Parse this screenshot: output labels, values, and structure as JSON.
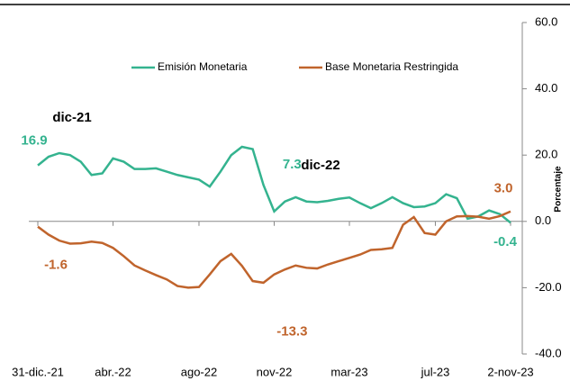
{
  "chart_data": {
    "type": "line",
    "categories": [
      "31-dic.-21",
      null,
      null,
      null,
      null,
      null,
      null,
      "abr.-22",
      null,
      null,
      null,
      null,
      null,
      null,
      null,
      "ago-22",
      null,
      null,
      null,
      null,
      null,
      null,
      "nov-22",
      null,
      null,
      null,
      null,
      null,
      null,
      "mar-23",
      null,
      null,
      null,
      null,
      null,
      null,
      null,
      "jul-23",
      null,
      null,
      null,
      null,
      null,
      null,
      "2-nov-23"
    ],
    "series": [
      {
        "name": "Emisión Monetaria",
        "color": "#34b38f",
        "values": [
          16.9,
          19.5,
          20.6,
          20,
          18,
          14,
          14.5,
          19,
          18,
          15.8,
          15.8,
          16,
          15,
          14,
          13.3,
          12.6,
          10.5,
          15,
          20,
          22.5,
          21.8,
          11,
          3,
          6,
          7.3,
          6,
          5.8,
          6.2,
          6.8,
          7.2,
          5.5,
          4,
          5.5,
          7.3,
          5.5,
          4.3,
          4.5,
          5.5,
          8.2,
          7,
          0.8,
          1.5,
          3.3,
          2.2,
          -0.4
        ],
        "value_labels": [
          "16.9",
          null,
          null,
          null,
          null,
          null,
          null,
          null,
          null,
          null,
          null,
          null,
          null,
          null,
          null,
          null,
          null,
          null,
          null,
          null,
          null,
          null,
          null,
          null,
          "7.3",
          null,
          null,
          null,
          null,
          null,
          null,
          null,
          null,
          null,
          null,
          null,
          null,
          null,
          null,
          null,
          null,
          null,
          null,
          null,
          "-0.4"
        ]
      },
      {
        "name": "Base Monetaria Restringida",
        "color": "#c0642c",
        "values": [
          -1.6,
          -4,
          -5.8,
          -6.7,
          -6.6,
          -6.1,
          -6.5,
          -8,
          -10.5,
          -13.3,
          -14.8,
          -16.2,
          -17.5,
          -19.5,
          -20,
          -19.8,
          -16,
          -12,
          -9.8,
          -13.4,
          -18,
          -18.5,
          -16,
          -14.5,
          -13.3,
          -14,
          -14.2,
          -13,
          -12,
          -11,
          -10,
          -8.6,
          -8.4,
          -8,
          -1,
          1.3,
          -3.5,
          -4,
          0,
          1.5,
          1.6,
          1.4,
          0.8,
          1.6,
          3.0
        ],
        "value_labels": [
          "-1.6",
          null,
          null,
          null,
          null,
          null,
          null,
          null,
          null,
          null,
          null,
          null,
          null,
          null,
          null,
          null,
          null,
          null,
          null,
          null,
          null,
          null,
          null,
          null,
          "-13.3",
          null,
          null,
          null,
          null,
          null,
          null,
          null,
          null,
          null,
          null,
          null,
          null,
          null,
          null,
          null,
          null,
          null,
          null,
          null,
          "3.0"
        ]
      }
    ],
    "annotations": [
      "dic-21",
      "dic-22"
    ],
    "ylabel": "Porcentaje",
    "ylim": [
      -40,
      60
    ],
    "yticks": [
      {
        "value": -40,
        "label": "-40.0"
      },
      {
        "value": -20,
        "label": "-20.0"
      },
      {
        "value": 0,
        "label": "0.0"
      },
      {
        "value": 20,
        "label": "20.0"
      },
      {
        "value": 40,
        "label": "40.0"
      },
      {
        "value": 60,
        "label": "60.0"
      }
    ],
    "legend": "top"
  }
}
